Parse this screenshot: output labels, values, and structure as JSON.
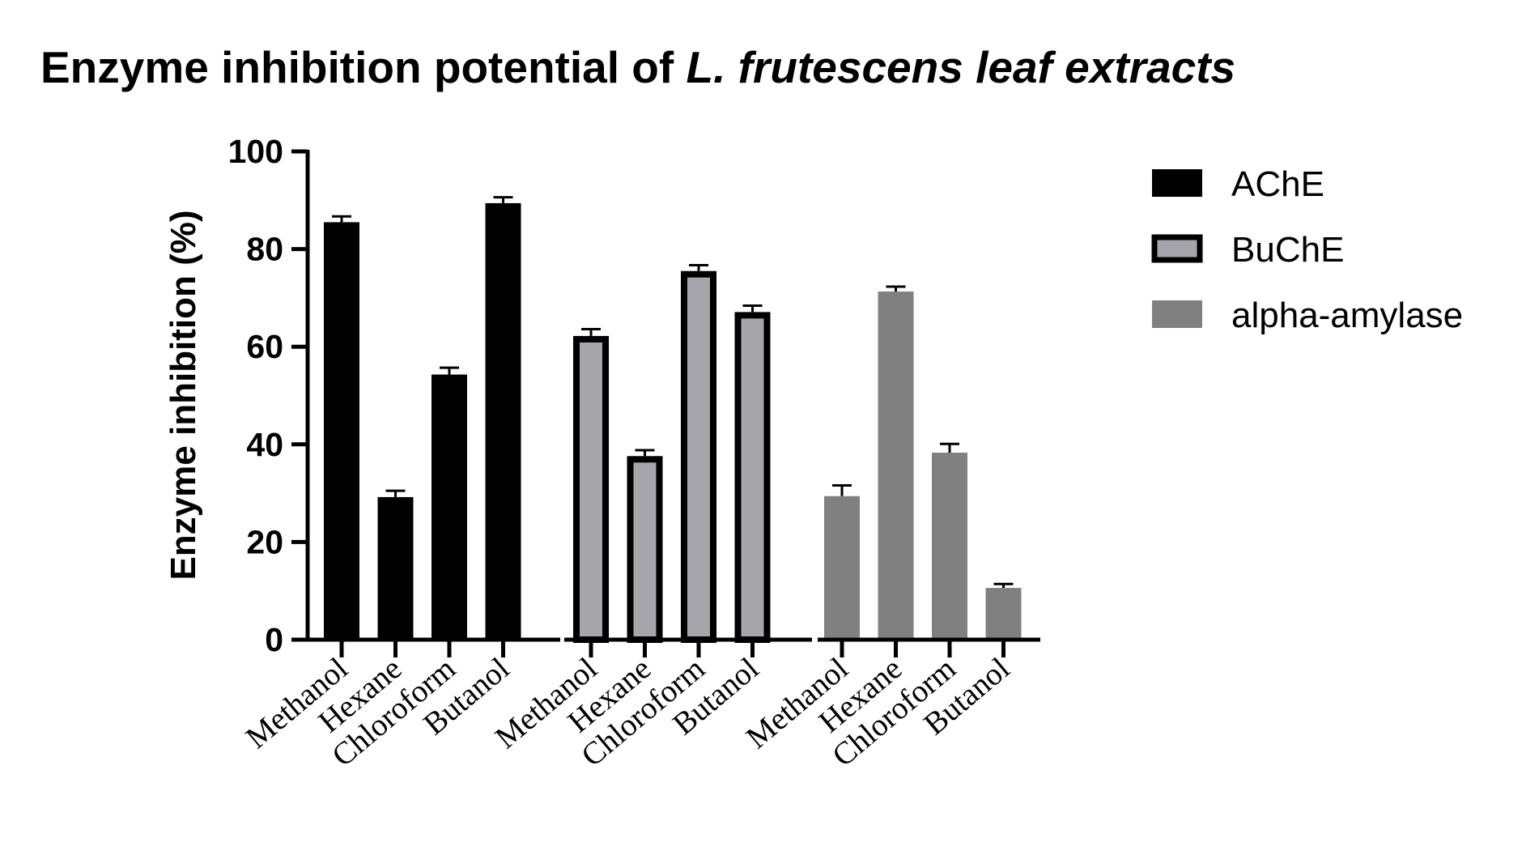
{
  "chart_data": {
    "type": "bar",
    "title": "Enzyme inhibition potential of",
    "title_italic": "L. frutescens leaf extracts",
    "ylabel": "Enzyme inhibition (%)",
    "xlabel": "",
    "ylim": [
      0,
      100
    ],
    "yticks": [
      "0",
      "20",
      "40",
      "60",
      "80",
      "100"
    ],
    "grid": false,
    "legend_position": "right",
    "categories": [
      "Methanol",
      "Hexane",
      "Chloroform",
      "Butanol"
    ],
    "series": [
      {
        "name": "AChE",
        "fill": "#000000",
        "stroke": "#000000",
        "values": [
          85.5,
          29.2,
          54.3,
          89.4
        ],
        "errors": [
          1.2,
          1.3,
          1.4,
          1.2
        ]
      },
      {
        "name": "BuChE",
        "fill": "#a6a6aa",
        "stroke": "#000000",
        "values": [
          62.2,
          37.6,
          75.5,
          67.1
        ],
        "errors": [
          1.4,
          1.2,
          1.2,
          1.3
        ]
      },
      {
        "name": "alpha-amylase",
        "fill": "#808080",
        "stroke": "#808080",
        "values": [
          29.4,
          71.3,
          38.3,
          10.6
        ],
        "errors": [
          2.2,
          1.0,
          1.8,
          0.8
        ]
      }
    ]
  }
}
